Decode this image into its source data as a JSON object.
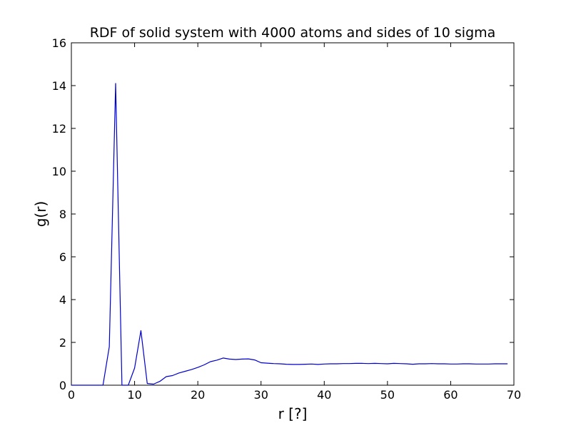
{
  "chart_data": {
    "type": "line",
    "title": "RDF of solid system with 4000 atoms and sides of 10 sigma",
    "xlabel": "r [?]",
    "ylabel": "g(r)",
    "xlim": [
      0,
      70
    ],
    "ylim": [
      0,
      16
    ],
    "xticks": [
      "0",
      "10",
      "20",
      "30",
      "40",
      "50",
      "60",
      "70"
    ],
    "yticks": [
      "0",
      "2",
      "4",
      "6",
      "8",
      "10",
      "12",
      "14",
      "16"
    ],
    "grid": false,
    "legend": "none",
    "series": [
      {
        "color": "#0000cc",
        "x": [
          0,
          1,
          2,
          3,
          4,
          5,
          6,
          7,
          8,
          9,
          10,
          11,
          12,
          13,
          14,
          15,
          16,
          17,
          18,
          19,
          20,
          21,
          22,
          23,
          24,
          25,
          26,
          27,
          28,
          29,
          30,
          31,
          32,
          33,
          34,
          35,
          36,
          37,
          38,
          39,
          40,
          41,
          42,
          43,
          44,
          45,
          46,
          47,
          48,
          49,
          50,
          51,
          52,
          53,
          54,
          55,
          56,
          57,
          58,
          59,
          60,
          61,
          62,
          63,
          64,
          65,
          66,
          67,
          68,
          69
        ],
        "values": [
          0,
          0,
          0,
          0,
          0,
          0,
          1.8,
          14.1,
          0,
          0,
          0.8,
          2.55,
          0.08,
          0.05,
          0.18,
          0.4,
          0.45,
          0.57,
          0.65,
          0.73,
          0.83,
          0.95,
          1.1,
          1.17,
          1.27,
          1.22,
          1.2,
          1.22,
          1.23,
          1.18,
          1.05,
          1.03,
          1.01,
          1.0,
          0.98,
          0.97,
          0.97,
          0.98,
          0.99,
          0.97,
          0.99,
          1.0,
          1.0,
          1.01,
          1.01,
          1.02,
          1.02,
          1.01,
          1.02,
          1.01,
          1.0,
          1.02,
          1.01,
          1.0,
          0.98,
          1.0,
          1.0,
          1.01,
          1.0,
          1.0,
          0.99,
          0.99,
          1.0,
          1.0,
          0.99,
          0.99,
          0.99,
          1.0,
          1.0,
          1.0
        ]
      }
    ]
  }
}
